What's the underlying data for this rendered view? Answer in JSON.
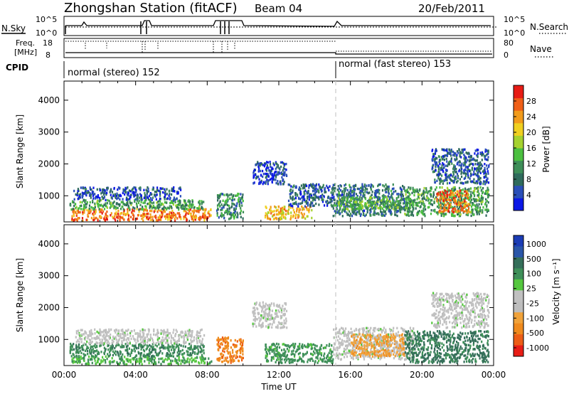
{
  "header": {
    "title": "Zhongshan Station (fitACF)",
    "beam": "Beam 04",
    "date": "20/Feb/2011"
  },
  "summary_panels": {
    "nsky": {
      "label": "N.Sky",
      "scale_top": "10^5",
      "scale_bottom": "10^0"
    },
    "nsearch": {
      "label": "N.Search",
      "scale_top": "10^5",
      "scale_bottom": "10^0"
    },
    "freq": {
      "label_line1": "Freq.",
      "label_line2": "[MHz]",
      "top": "18",
      "bottom": "8"
    },
    "nave": {
      "label": "Nave",
      "top": "80",
      "bottom": "0"
    },
    "cpid": {
      "label": "CPID",
      "modes": [
        {
          "text": "normal (stereo) 152",
          "start_hour": 0
        },
        {
          "text": "normal (fast stereo) 153",
          "start_hour": 15.2
        }
      ]
    }
  },
  "chart_data": [
    {
      "type": "heatmap",
      "title": "",
      "ylabel": "Slant Range [km]",
      "xlabel": "",
      "xlim": [
        0,
        24
      ],
      "ylim": [
        180,
        4600
      ],
      "yticks": [
        1000,
        2000,
        3000,
        4000
      ],
      "colorbar": {
        "label": "Power [dB]",
        "ticks": [
          4,
          8,
          12,
          16,
          20,
          24,
          28
        ],
        "range": [
          0,
          32
        ],
        "colors": [
          "#0c18e6",
          "#2a4fb8",
          "#2f6b5c",
          "#3e8e58",
          "#4cc040",
          "#a5d22f",
          "#f0d020",
          "#f29b1b",
          "#ef5f18",
          "#e71c15"
        ]
      },
      "regions": [
        {
          "x": [
            0.4,
            8.2
          ],
          "y": [
            250,
            620
          ],
          "value": 26
        },
        {
          "x": [
            0.3,
            7.8
          ],
          "y": [
            600,
            900
          ],
          "value": 12
        },
        {
          "x": [
            0.5,
            6.5
          ],
          "y": [
            900,
            1300
          ],
          "value": 5
        },
        {
          "x": [
            8.5,
            10.0
          ],
          "y": [
            300,
            1100
          ],
          "value": 10
        },
        {
          "x": [
            10.5,
            12.4
          ],
          "y": [
            1400,
            2100
          ],
          "value": 4
        },
        {
          "x": [
            11.2,
            13.8
          ],
          "y": [
            300,
            700
          ],
          "value": 22
        },
        {
          "x": [
            12.5,
            15.0
          ],
          "y": [
            700,
            1400
          ],
          "value": 6
        },
        {
          "x": [
            15.0,
            19.0
          ],
          "y": [
            400,
            1400
          ],
          "value": 8
        },
        {
          "x": [
            15.2,
            19.5
          ],
          "y": [
            600,
            1000
          ],
          "value": 14
        },
        {
          "x": [
            19.0,
            23.7
          ],
          "y": [
            400,
            1300
          ],
          "value": 12
        },
        {
          "x": [
            20.8,
            22.6
          ],
          "y": [
            500,
            1200
          ],
          "value": 26
        },
        {
          "x": [
            20.5,
            23.7
          ],
          "y": [
            1400,
            2500
          ],
          "value": 6
        }
      ]
    },
    {
      "type": "heatmap",
      "title": "",
      "ylabel": "Slant Range [km]",
      "xlabel": "Time UT",
      "xlim": [
        0,
        24
      ],
      "ylim": [
        180,
        4600
      ],
      "xticks": [
        "00:00",
        "04:00",
        "08:00",
        "12:00",
        "16:00",
        "20:00",
        "00:00"
      ],
      "yticks": [
        1000,
        2000,
        3000,
        4000
      ],
      "colorbar": {
        "label": "Velocity [m s⁻¹]",
        "ticks": [
          "1000",
          "500",
          "100",
          "25",
          "-25",
          "-100",
          "-500",
          "-1000"
        ],
        "colors": [
          "#1b3cb5",
          "#2a56a8",
          "#356f5a",
          "#3e8f59",
          "#55c73e",
          "#c0c0c0",
          "#bdbdbd",
          "#f0a23a",
          "#ef8a1d",
          "#ec5d16",
          "#e81d16"
        ]
      },
      "regions": [
        {
          "x": [
            0.4,
            8.2
          ],
          "y": [
            250,
            500
          ],
          "value": 100
        },
        {
          "x": [
            0.3,
            7.8
          ],
          "y": [
            500,
            900
          ],
          "value": 200
        },
        {
          "x": [
            0.5,
            7.8
          ],
          "y": [
            900,
            1350
          ],
          "value": 0
        },
        {
          "x": [
            8.5,
            10.0
          ],
          "y": [
            300,
            1100
          ],
          "value": -200
        },
        {
          "x": [
            10.5,
            12.4
          ],
          "y": [
            1400,
            2200
          ],
          "value": 0
        },
        {
          "x": [
            11.2,
            15.0
          ],
          "y": [
            300,
            900
          ],
          "value": 150
        },
        {
          "x": [
            15.0,
            19.5
          ],
          "y": [
            400,
            1400
          ],
          "value": 0
        },
        {
          "x": [
            16.0,
            19.0
          ],
          "y": [
            500,
            1200
          ],
          "value": -80
        },
        {
          "x": [
            19.0,
            23.7
          ],
          "y": [
            300,
            1300
          ],
          "value": 300
        },
        {
          "x": [
            20.5,
            23.7
          ],
          "y": [
            1400,
            2500
          ],
          "value": 0
        }
      ]
    }
  ]
}
